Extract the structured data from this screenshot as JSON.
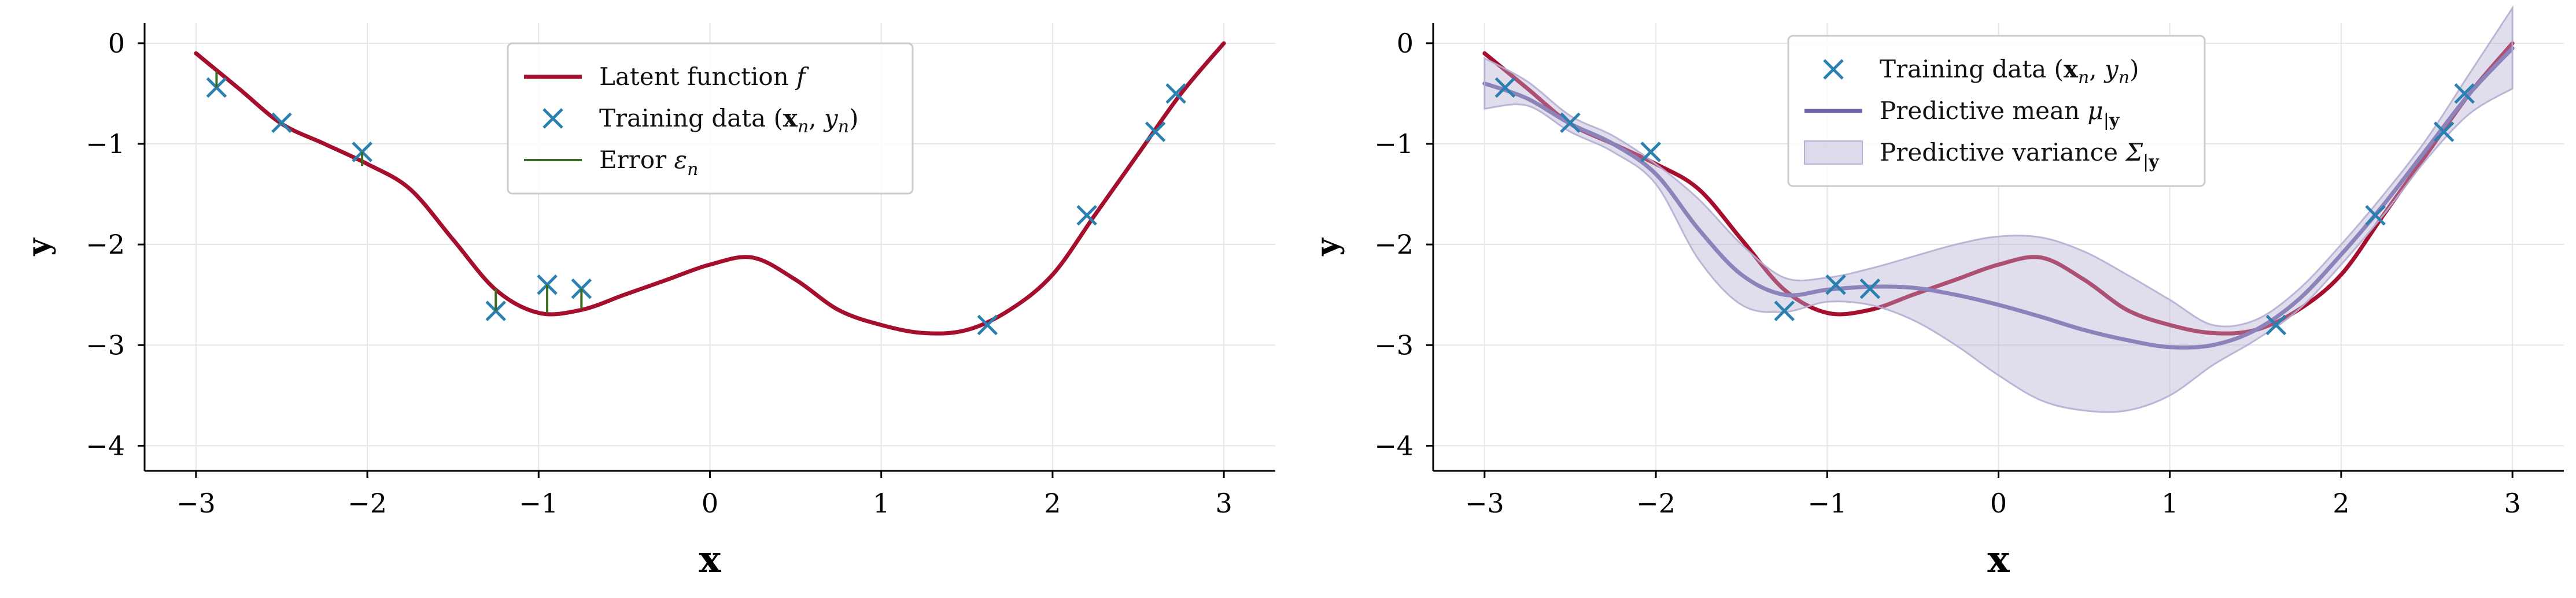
{
  "chart_data": [
    {
      "type": "line",
      "panel": "left",
      "xlabel": "x",
      "ylabel": "y",
      "xlim": [
        -3.3,
        3.3
      ],
      "ylim": [
        -4.25,
        0.2
      ],
      "x_ticks": [
        -3,
        -2,
        -1,
        0,
        1,
        2,
        3
      ],
      "x_tick_labels": [
        "−3",
        "−2",
        "−1",
        "0",
        "1",
        "2",
        "3"
      ],
      "y_ticks": [
        0,
        -1,
        -2,
        -3,
        -4
      ],
      "y_tick_labels": [
        "0",
        "−1",
        "−2",
        "−3",
        "−4"
      ],
      "grid": true,
      "legend_position": "top-center",
      "legend": [
        {
          "name": "Latent function",
          "sym": "f",
          "sub": "",
          "kind": "line",
          "color": "#a50f2d"
        },
        {
          "name": "Training data (",
          "sym": "x",
          "sub": "n",
          "tail_sym": "y",
          "tail_sub": "n",
          "kind": "marker",
          "color": "#2a80b0"
        },
        {
          "name": "Error",
          "sym": "ε",
          "sub": "n",
          "kind": "line",
          "color": "#3a6b1f"
        }
      ],
      "series": [
        {
          "name": "Latent function f",
          "kind": "line",
          "color": "#a50f2d",
          "x": [
            -3.0,
            -2.75,
            -2.5,
            -2.25,
            -2.0,
            -1.75,
            -1.5,
            -1.25,
            -1.0,
            -0.75,
            -0.5,
            -0.25,
            0.0,
            0.25,
            0.5,
            0.75,
            1.0,
            1.25,
            1.5,
            1.75,
            2.0,
            2.25,
            2.5,
            2.75,
            3.0
          ],
          "y": [
            -0.1,
            -0.45,
            -0.8,
            -1.0,
            -1.2,
            -1.45,
            -1.95,
            -2.45,
            -2.68,
            -2.65,
            -2.5,
            -2.35,
            -2.2,
            -2.13,
            -2.35,
            -2.65,
            -2.8,
            -2.88,
            -2.85,
            -2.65,
            -2.3,
            -1.7,
            -1.1,
            -0.5,
            0.0
          ]
        },
        {
          "name": "Training data (x_n, y_n)",
          "kind": "scatter",
          "color": "#2a80b0",
          "x": [
            -2.88,
            -2.5,
            -2.03,
            -1.25,
            -0.95,
            -0.75,
            1.62,
            2.2,
            2.6,
            2.72
          ],
          "y": [
            -0.44,
            -0.79,
            -1.08,
            -2.66,
            -2.4,
            -2.44,
            -2.8,
            -1.71,
            -0.88,
            -0.5
          ]
        },
        {
          "name": "Error ε_n",
          "kind": "error",
          "color": "#3a6b1f",
          "x": [
            -2.88,
            -2.5,
            -2.03,
            -1.25,
            -0.95,
            -0.75
          ],
          "from": [
            -0.28,
            -0.8,
            -1.22,
            -2.44,
            -2.68,
            -2.64
          ],
          "to": [
            -0.44,
            -0.79,
            -1.08,
            -2.66,
            -2.4,
            -2.44
          ]
        }
      ]
    },
    {
      "type": "line",
      "panel": "right",
      "xlabel": "x",
      "ylabel": "y",
      "xlim": [
        -3.3,
        3.3
      ],
      "ylim": [
        -4.25,
        0.2
      ],
      "x_ticks": [
        -3,
        -2,
        -1,
        0,
        1,
        2,
        3
      ],
      "x_tick_labels": [
        "−3",
        "−2",
        "−1",
        "0",
        "1",
        "2",
        "3"
      ],
      "y_ticks": [
        0,
        -1,
        -2,
        -3,
        -4
      ],
      "y_tick_labels": [
        "0",
        "−1",
        "−2",
        "−3",
        "−4"
      ],
      "grid": true,
      "legend_position": "top-center",
      "legend": [
        {
          "name": "Training data (",
          "sym": "x",
          "sub": "n",
          "tail_sym": "y",
          "tail_sub": "n",
          "kind": "marker",
          "color": "#2a80b0"
        },
        {
          "name": "Predictive mean",
          "sym": "μ",
          "sub": "|y",
          "kind": "line",
          "color": "#6f64a8"
        },
        {
          "name": "Predictive variance",
          "sym": "Σ",
          "sub": "|y",
          "kind": "band",
          "color": "#b6aed3"
        }
      ],
      "series": [
        {
          "name": "Latent function f",
          "kind": "line",
          "color": "#a50f2d",
          "x": [
            -3.0,
            -2.75,
            -2.5,
            -2.25,
            -2.0,
            -1.75,
            -1.5,
            -1.25,
            -1.0,
            -0.75,
            -0.5,
            -0.25,
            0.0,
            0.25,
            0.5,
            0.75,
            1.0,
            1.25,
            1.5,
            1.75,
            2.0,
            2.25,
            2.5,
            2.75,
            3.0
          ],
          "y": [
            -0.1,
            -0.45,
            -0.8,
            -1.0,
            -1.2,
            -1.45,
            -1.95,
            -2.45,
            -2.68,
            -2.65,
            -2.5,
            -2.35,
            -2.2,
            -2.13,
            -2.35,
            -2.65,
            -2.8,
            -2.88,
            -2.85,
            -2.65,
            -2.3,
            -1.7,
            -1.1,
            -0.5,
            0.0
          ]
        },
        {
          "name": "Predictive mean μ|y",
          "kind": "line",
          "color": "#6f64a8",
          "x": [
            -3.0,
            -2.75,
            -2.5,
            -2.25,
            -2.0,
            -1.75,
            -1.5,
            -1.25,
            -1.0,
            -0.75,
            -0.5,
            -0.25,
            0.0,
            0.25,
            0.5,
            0.75,
            1.0,
            1.25,
            1.5,
            1.75,
            2.0,
            2.25,
            2.5,
            2.75,
            3.0
          ],
          "y": [
            -0.4,
            -0.55,
            -0.8,
            -1.0,
            -1.3,
            -1.85,
            -2.3,
            -2.5,
            -2.45,
            -2.42,
            -2.43,
            -2.5,
            -2.6,
            -2.72,
            -2.85,
            -2.95,
            -3.02,
            -3.0,
            -2.85,
            -2.55,
            -2.1,
            -1.6,
            -1.05,
            -0.5,
            -0.05
          ]
        },
        {
          "name": "Predictive variance Σ|y",
          "kind": "band",
          "color": "#b6aed3",
          "x": [
            -3.0,
            -2.75,
            -2.5,
            -2.25,
            -2.0,
            -1.75,
            -1.5,
            -1.25,
            -1.0,
            -0.75,
            -0.5,
            -0.25,
            0.0,
            0.25,
            0.5,
            0.75,
            1.0,
            1.25,
            1.5,
            1.75,
            2.0,
            2.25,
            2.5,
            2.75,
            3.0
          ],
          "lower": [
            -0.65,
            -0.62,
            -0.88,
            -1.08,
            -1.4,
            -2.15,
            -2.6,
            -2.67,
            -2.57,
            -2.6,
            -2.75,
            -3.0,
            -3.3,
            -3.55,
            -3.65,
            -3.65,
            -3.5,
            -3.2,
            -2.95,
            -2.65,
            -2.2,
            -1.7,
            -1.15,
            -0.7,
            -0.45
          ],
          "upper": [
            -0.15,
            -0.38,
            -0.72,
            -0.92,
            -1.2,
            -1.55,
            -2.0,
            -2.33,
            -2.33,
            -2.24,
            -2.12,
            -2.0,
            -1.92,
            -1.93,
            -2.07,
            -2.3,
            -2.55,
            -2.8,
            -2.75,
            -2.45,
            -2.0,
            -1.5,
            -0.95,
            -0.3,
            0.35
          ]
        },
        {
          "name": "Training data (x_n, y_n)",
          "kind": "scatter",
          "color": "#2a80b0",
          "x": [
            -2.88,
            -2.5,
            -2.03,
            -1.25,
            -0.95,
            -0.75,
            1.62,
            2.2,
            2.6,
            2.72
          ],
          "y": [
            -0.44,
            -0.79,
            -1.08,
            -2.66,
            -2.4,
            -2.44,
            -2.8,
            -1.71,
            -0.88,
            -0.5
          ]
        }
      ]
    }
  ]
}
